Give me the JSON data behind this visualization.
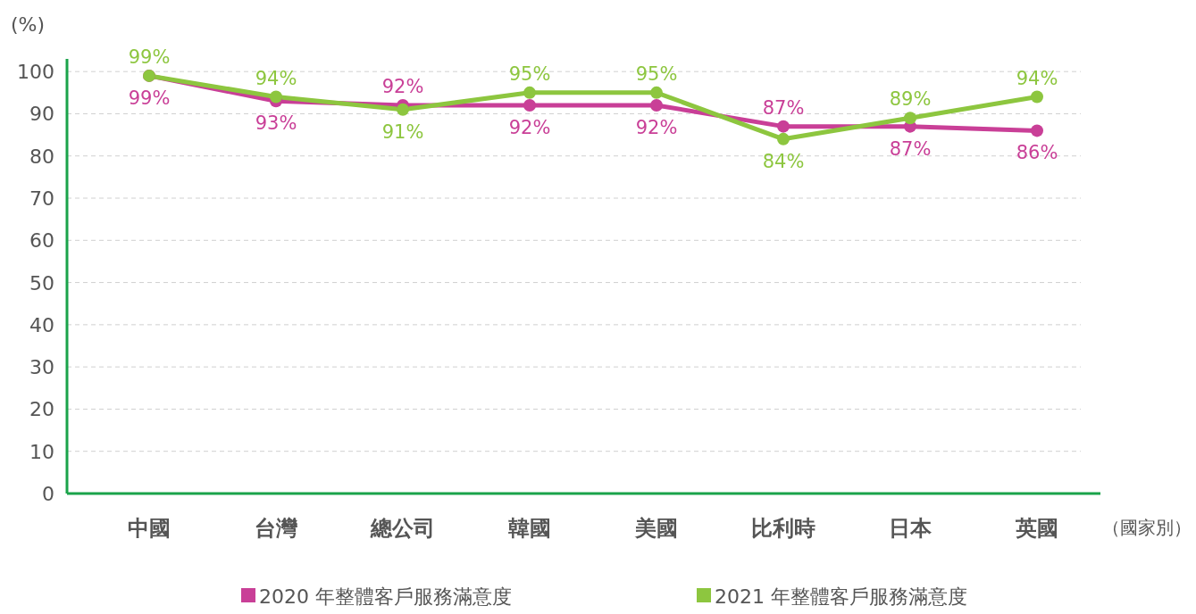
{
  "chart_data": {
    "type": "line",
    "ylabel": "(%)",
    "xlabel": "（國家別）",
    "categories": [
      "中國",
      "台灣",
      "總公司",
      "韓國",
      "美國",
      "比利時",
      "日本",
      "英國"
    ],
    "series": [
      {
        "name": "2020 年整體客戶服務滿意度",
        "color": "#c93f97",
        "values": [
          99,
          93,
          92,
          92,
          92,
          87,
          87,
          86
        ],
        "value_labels": [
          "99%",
          "93%",
          "92%",
          "92%",
          "92%",
          "87%",
          "87%",
          "86%"
        ]
      },
      {
        "name": "2021 年整體客戶服務滿意度",
        "color": "#8dc63f",
        "values": [
          99,
          94,
          91,
          95,
          95,
          84,
          89,
          94
        ],
        "value_labels": [
          "99%",
          "94%",
          "91%",
          "95%",
          "95%",
          "84%",
          "89%",
          "94%"
        ]
      }
    ],
    "ylim": [
      0,
      103
    ],
    "yticks": [
      0,
      10,
      20,
      30,
      40,
      50,
      60,
      70,
      80,
      90,
      100
    ],
    "grid": "y",
    "legend": "bottom",
    "marker": "circle",
    "line_style": "solid"
  }
}
